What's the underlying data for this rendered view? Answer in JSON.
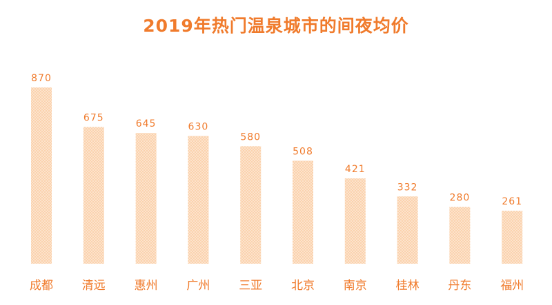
{
  "colors": {
    "accent": "#f07b2c",
    "bar_fill": "#fbd2ad",
    "bar_dots": "#ffffff"
  },
  "chart_data": {
    "type": "bar",
    "title": "2019年热门温泉城市的间夜均价",
    "xlabel": "",
    "ylabel": "",
    "categories": [
      "成都",
      "清远",
      "惠州",
      "广州",
      "三亚",
      "北京",
      "南京",
      "桂林",
      "丹东",
      "福州"
    ],
    "values": [
      870,
      675,
      645,
      630,
      580,
      508,
      421,
      332,
      280,
      261
    ],
    "ylim": [
      0,
      870
    ],
    "grid": false,
    "legend": "none",
    "data_labels": true
  }
}
